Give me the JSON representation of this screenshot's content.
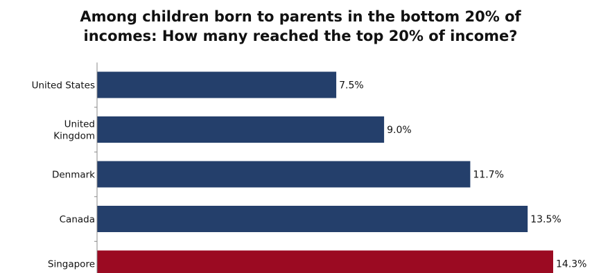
{
  "chart_data": {
    "type": "bar",
    "orientation": "horizontal",
    "title_lines": [
      "Among children born to parents in the bottom 20% of",
      "incomes: How many reached the top 20% of income?"
    ],
    "categories": [
      [
        "United States"
      ],
      [
        "United",
        "Kingdom"
      ],
      [
        "Denmark"
      ],
      [
        "Canada"
      ],
      [
        "Singapore"
      ]
    ],
    "values": [
      7.5,
      9.0,
      11.7,
      13.5,
      14.3
    ],
    "value_labels": [
      "7.5%",
      "9.0%",
      "11.7%",
      "13.5%",
      "14.3%"
    ],
    "colors": [
      "#243f6b",
      "#243f6b",
      "#243f6b",
      "#243f6b",
      "#9b0a22"
    ],
    "axis_color": "#888888",
    "xlim": [
      0,
      14.3
    ],
    "grid": false,
    "legend": "none"
  }
}
